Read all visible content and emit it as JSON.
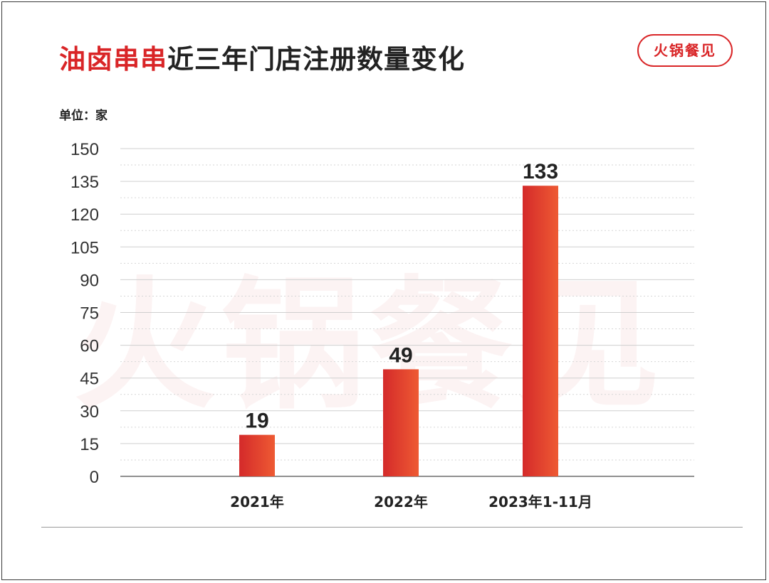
{
  "header": {
    "title_highlight": "油卤串串",
    "title_rest": "近三年门店注册数量变化",
    "brand_badge": "火锅餐见",
    "watermark": "火锅餐见"
  },
  "colors": {
    "accent": "#d92527",
    "bar_gradient_start": "#d42a2a",
    "bar_gradient_end": "#ee5a33"
  },
  "chart_data": {
    "type": "bar",
    "unit_label": "单位：家",
    "categories": [
      "2021年",
      "2022年",
      "2023年1-11月"
    ],
    "values": [
      19,
      49,
      133
    ],
    "data_labels": [
      "19",
      "49",
      "133"
    ],
    "yticks": [
      0,
      15,
      30,
      45,
      60,
      75,
      90,
      105,
      120,
      135,
      150
    ],
    "ylim": [
      0,
      150
    ],
    "grid": true,
    "minor_grid_dotted": true,
    "legend": "none"
  }
}
